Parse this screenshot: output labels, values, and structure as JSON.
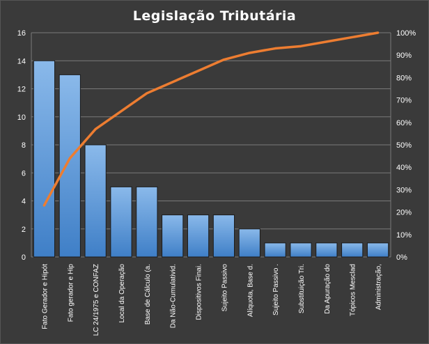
{
  "chart_data": {
    "type": "bar",
    "title": "Legislação  Tributária",
    "categories": [
      "Fato Gerador e Hipót",
      "Fato gerador e Hip",
      "LC 24/1975 e CONFAZ",
      "Local da Operação",
      "Base de Cálculo (a.",
      "Da Não-Cumulativid.",
      "Dispositivos Finai.",
      "Sujeito Passivo",
      "Alíquota, Base d.",
      "Sujeito Passivo .",
      "Substituição Tri.",
      "Da Apuração do",
      "Tópicos Mesclad",
      "Administração,"
    ],
    "series": [
      {
        "type": "bar",
        "values": [
          14,
          13,
          8,
          5,
          5,
          3,
          3,
          3,
          2,
          1,
          1,
          1,
          1,
          1
        ]
      },
      {
        "type": "line",
        "axis": "secondary",
        "values": [
          23,
          44,
          57,
          65,
          73,
          78,
          83,
          88,
          91,
          93,
          94,
          96,
          98,
          100
        ]
      }
    ],
    "y_left": {
      "min": 0,
      "max": 16,
      "step": 2,
      "ticks": [
        "0",
        "2",
        "4",
        "6",
        "8",
        "10",
        "12",
        "14",
        "16"
      ]
    },
    "y_right": {
      "min": 0,
      "max": 100,
      "step": 10,
      "ticks": [
        "0%",
        "10%",
        "20%",
        "30%",
        "40%",
        "50%",
        "60%",
        "70%",
        "80%",
        "90%",
        "100%"
      ]
    },
    "grid": true,
    "legend": "none",
    "colors": {
      "background": "#3a3a3a",
      "plot_background": "#3a3a3a",
      "grid": "#7a7a7a",
      "bar_fill_top": "#8ab9ea",
      "bar_fill_bottom": "#3f7fc7",
      "bar_stroke": "#1a1a1a",
      "line": "#ed7d31",
      "text": "#ffffff"
    }
  }
}
